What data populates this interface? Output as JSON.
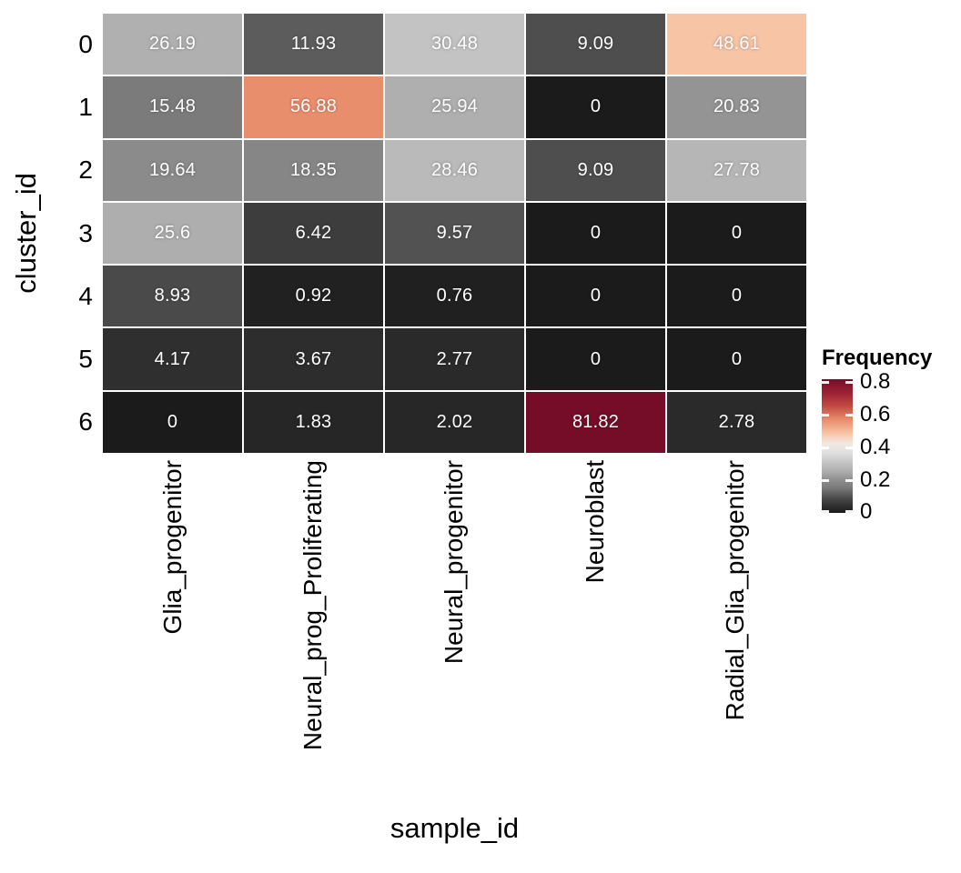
{
  "chart_data": {
    "type": "heatmap",
    "xlabel": "sample_id",
    "ylabel": "cluster_id",
    "x_categories": [
      "Glia_progenitor",
      "Neural_prog_Proliferating",
      "Neural_progenitor",
      "Neuroblast",
      "Radial_Glia_progenitor"
    ],
    "y_categories": [
      "0",
      "1",
      "2",
      "3",
      "4",
      "5",
      "6"
    ],
    "value_unit": "percent",
    "rows": [
      {
        "cluster": "0",
        "labels": [
          "26.19",
          "11.93",
          "30.48",
          "9.09",
          "48.61"
        ],
        "values": [
          26.19,
          11.93,
          30.48,
          9.09,
          48.61
        ],
        "colors": [
          "#b0b0b0",
          "#5c5c5c",
          "#c3c3c3",
          "#4e4e4e",
          "#f8c4a6"
        ]
      },
      {
        "cluster": "1",
        "labels": [
          "15.48",
          "56.88",
          "25.94",
          "0",
          "20.83"
        ],
        "values": [
          15.48,
          56.88,
          25.94,
          0,
          20.83
        ],
        "colors": [
          "#7b7b7b",
          "#e98e6d",
          "#afafaf",
          "#1b1b1b",
          "#949494"
        ]
      },
      {
        "cluster": "2",
        "labels": [
          "19.64",
          "18.35",
          "28.46",
          "9.09",
          "27.78"
        ],
        "values": [
          19.64,
          18.35,
          28.46,
          9.09,
          27.78
        ],
        "colors": [
          "#8b8b8b",
          "#868686",
          "#bababa",
          "#4e4e4e",
          "#b6b6b6"
        ]
      },
      {
        "cluster": "3",
        "labels": [
          "25.6",
          "6.42",
          "9.57",
          "0",
          "0"
        ],
        "values": [
          25.6,
          6.42,
          9.57,
          0,
          0
        ],
        "colors": [
          "#aeaeae",
          "#3d3d3d",
          "#525252",
          "#1b1b1b",
          "#1b1b1b"
        ]
      },
      {
        "cluster": "4",
        "labels": [
          "8.93",
          "0.92",
          "0.76",
          "0",
          "0"
        ],
        "values": [
          8.93,
          0.92,
          0.76,
          0,
          0
        ],
        "colors": [
          "#4a4a4a",
          "#212121",
          "#202020",
          "#1b1b1b",
          "#1b1b1b"
        ]
      },
      {
        "cluster": "5",
        "labels": [
          "4.17",
          "3.67",
          "2.77",
          "0",
          "0"
        ],
        "values": [
          4.17,
          3.67,
          2.77,
          0,
          0
        ],
        "colors": [
          "#2f2f2f",
          "#2d2d2d",
          "#2a2a2a",
          "#1b1b1b",
          "#1b1b1b"
        ]
      },
      {
        "cluster": "6",
        "labels": [
          "0",
          "1.83",
          "2.02",
          "81.82",
          "2.78"
        ],
        "values": [
          0,
          1.83,
          2.02,
          81.82,
          2.78
        ],
        "colors": [
          "#1b1b1b",
          "#262626",
          "#272727",
          "#750d29",
          "#2a2a2a"
        ]
      }
    ],
    "legend": {
      "title": "Frequency",
      "domain_max": 0.8182,
      "ticks": [
        {
          "label": "0.8",
          "value": 0.8
        },
        {
          "label": "0.6",
          "value": 0.6
        },
        {
          "label": "0.4",
          "value": 0.4
        },
        {
          "label": "0.2",
          "value": 0.2
        },
        {
          "label": "0",
          "value": 0
        }
      ],
      "gradient_stops": [
        {
          "pos": 0.0,
          "color": "#1b1b1b"
        },
        {
          "pos": 0.051,
          "color": "#2f2f2f"
        },
        {
          "pos": 0.109,
          "color": "#4a4a4a"
        },
        {
          "pos": 0.189,
          "color": "#7b7b7b"
        },
        {
          "pos": 0.24,
          "color": "#8b8b8b"
        },
        {
          "pos": 0.313,
          "color": "#aeaeae"
        },
        {
          "pos": 0.373,
          "color": "#c3c3c3"
        },
        {
          "pos": 0.45,
          "color": "#e0e0e0"
        },
        {
          "pos": 0.52,
          "color": "#f2e9e2"
        },
        {
          "pos": 0.594,
          "color": "#f8c4a6"
        },
        {
          "pos": 0.695,
          "color": "#e98e6d"
        },
        {
          "pos": 0.8,
          "color": "#c24a41"
        },
        {
          "pos": 0.9,
          "color": "#9c2133"
        },
        {
          "pos": 1.0,
          "color": "#750d29"
        }
      ]
    },
    "grid": {
      "gap_color": "#ffffff",
      "cell_text_color": "#ffffff",
      "axis_text_color": "#000000"
    }
  }
}
